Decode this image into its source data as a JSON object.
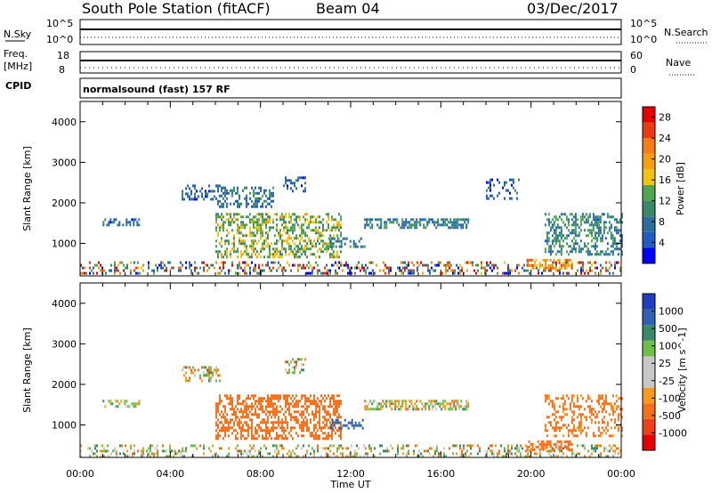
{
  "header": {
    "station": "South Pole Station (fitACF)",
    "beam": "Beam 04",
    "date": "03/Dec/2017"
  },
  "side_labels": {
    "nsky": "N.Sky",
    "freq_top": "Freq.",
    "freq_unit": "[MHz]",
    "cpid": "CPID",
    "nsearch": "N.Search",
    "nave": "Nave"
  },
  "mini_axes": {
    "noise_left_top": "10^5",
    "noise_left_bottom": "10^0",
    "noise_right_top": "10^5",
    "noise_right_bottom": "10^0",
    "freq_left_top": "18",
    "freq_left_bottom": "8",
    "nave_right_top": "60",
    "nave_right_bottom": "0"
  },
  "cpid_text": "normalsound (fast) 157 RF",
  "colors": {
    "power_bar": [
      "#0000ff",
      "#1f5cc4",
      "#2d6e9a",
      "#3a8a6a",
      "#4fa64f",
      "#f2c40c",
      "#f69e0e",
      "#f77c12",
      "#ef3a10",
      "#e60000"
    ],
    "velocity_bar": [
      "#e60000",
      "#f0401a",
      "#f56e1a",
      "#f89b1c",
      "#c8c8c8",
      "#c8c8c8",
      "#6cc04a",
      "#3a8a6a",
      "#2f62b0",
      "#1f3ec0"
    ]
  },
  "chart_data": [
    {
      "type": "heatmap",
      "title": "Power",
      "ylabel": "Slant Range [km]",
      "xlabel": "",
      "x_range_hours": [
        0,
        24
      ],
      "ylim": [
        200,
        4500
      ],
      "y_ticks": [
        "1000",
        "2000",
        "3000",
        "4000"
      ],
      "colorbar": {
        "label": "Power [dB]",
        "ticks": [
          "4",
          "8",
          "12",
          "16",
          "20",
          "24",
          "28"
        ],
        "range": [
          0,
          30
        ]
      },
      "regions": [
        {
          "x0": 0.0,
          "x1": 24.0,
          "y0": 240,
          "y1": 560,
          "value": 10,
          "density": 0.35,
          "mixed": true
        },
        {
          "x0": 1.0,
          "x1": 2.6,
          "y0": 1450,
          "y1": 1620,
          "value": 6,
          "density": 0.5
        },
        {
          "x0": 4.5,
          "x1": 6.2,
          "y0": 2100,
          "y1": 2450,
          "value": 6,
          "density": 0.45
        },
        {
          "x0": 6.0,
          "x1": 8.6,
          "y0": 1900,
          "y1": 2400,
          "value": 8,
          "density": 0.4
        },
        {
          "x0": 6.0,
          "x1": 11.6,
          "y0": 650,
          "y1": 1750,
          "value": 14,
          "density": 0.45
        },
        {
          "x0": 9.0,
          "x1": 10.0,
          "y0": 2300,
          "y1": 2650,
          "value": 7,
          "density": 0.35
        },
        {
          "x0": 11.0,
          "x1": 12.6,
          "y0": 900,
          "y1": 1150,
          "value": 9,
          "density": 0.4
        },
        {
          "x0": 12.6,
          "x1": 17.2,
          "y0": 1400,
          "y1": 1620,
          "value": 8,
          "density": 0.55
        },
        {
          "x0": 18.0,
          "x1": 19.5,
          "y0": 2100,
          "y1": 2600,
          "value": 6,
          "density": 0.25
        },
        {
          "x0": 19.8,
          "x1": 21.8,
          "y0": 400,
          "y1": 620,
          "value": 20,
          "density": 0.6
        },
        {
          "x0": 20.6,
          "x1": 24.0,
          "y0": 700,
          "y1": 1750,
          "value": 10,
          "density": 0.4
        }
      ]
    },
    {
      "type": "heatmap",
      "title": "Velocity",
      "ylabel": "Slant Range [km]",
      "xlabel": "Time UT",
      "x_range_hours": [
        0,
        24
      ],
      "x_ticks": [
        "00:00",
        "04:00",
        "08:00",
        "12:00",
        "16:00",
        "20:00",
        "00:00"
      ],
      "ylim": [
        200,
        4500
      ],
      "y_ticks": [
        "1000",
        "2000",
        "3000",
        "4000"
      ],
      "colorbar": {
        "label": "Velocity [m s^-1]",
        "ticks": [
          "-1000",
          "-500",
          "-100",
          "-25",
          "25",
          "100",
          "500",
          "1000"
        ],
        "range": [
          -1200,
          1200
        ]
      },
      "regions": [
        {
          "x0": 0.0,
          "x1": 24.0,
          "y0": 240,
          "y1": 520,
          "value": 0,
          "density": 0.3
        },
        {
          "x0": 1.0,
          "x1": 2.6,
          "y0": 1450,
          "y1": 1620,
          "value": 0,
          "density": 0.5
        },
        {
          "x0": 4.5,
          "x1": 6.2,
          "y0": 2100,
          "y1": 2450,
          "value": 0,
          "density": 0.45
        },
        {
          "x0": 6.0,
          "x1": 11.6,
          "y0": 650,
          "y1": 1750,
          "value": -300,
          "density": 0.5
        },
        {
          "x0": 9.0,
          "x1": 10.0,
          "y0": 2300,
          "y1": 2650,
          "value": 0,
          "density": 0.35
        },
        {
          "x0": 11.0,
          "x1": 12.6,
          "y0": 900,
          "y1": 1150,
          "value": 600,
          "density": 0.35
        },
        {
          "x0": 12.6,
          "x1": 17.2,
          "y0": 1400,
          "y1": 1620,
          "value": 0,
          "density": 0.55
        },
        {
          "x0": 19.8,
          "x1": 21.8,
          "y0": 400,
          "y1": 620,
          "value": -300,
          "density": 0.6
        },
        {
          "x0": 20.6,
          "x1": 24.0,
          "y0": 700,
          "y1": 1750,
          "value": -200,
          "density": 0.35
        }
      ]
    }
  ]
}
